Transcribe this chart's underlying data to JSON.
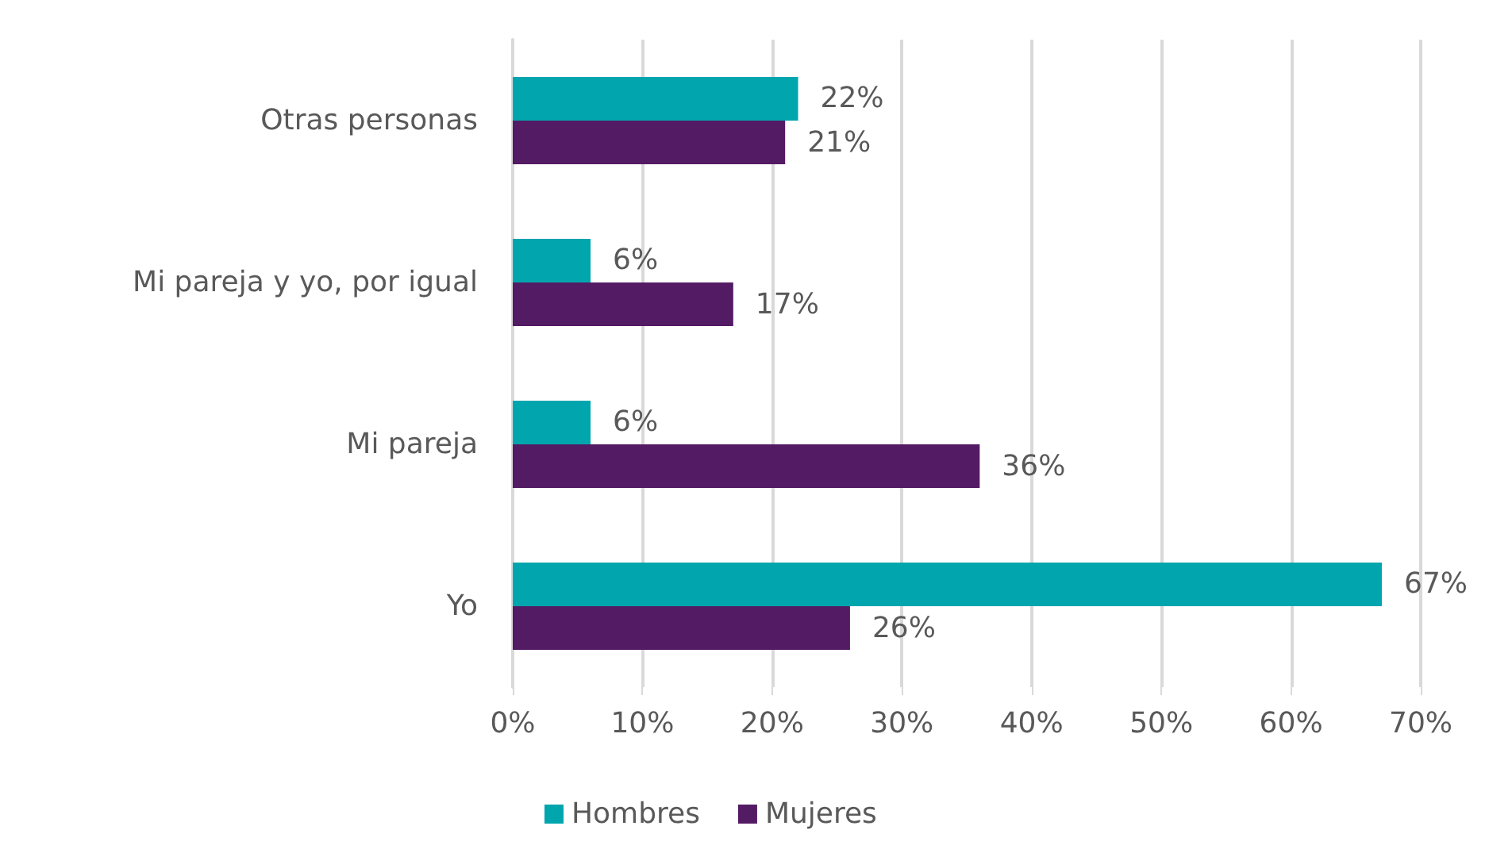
{
  "chart_data": {
    "type": "bar",
    "orientation": "horizontal",
    "categories": [
      "Otras personas",
      "Mi pareja y yo, por igual",
      "Mi pareja",
      "Yo"
    ],
    "series": [
      {
        "name": "Hombres",
        "color": "#00a5ad",
        "values": [
          22,
          6,
          6,
          67
        ],
        "value_labels": [
          "22%",
          "6%",
          "6%",
          "67%"
        ]
      },
      {
        "name": "Mujeres",
        "color": "#541b65",
        "values": [
          21,
          17,
          36,
          26
        ],
        "value_labels": [
          "21%",
          "17%",
          "36%",
          "26%"
        ]
      }
    ],
    "xlim": [
      0,
      70
    ],
    "xticks": [
      {
        "value": 0,
        "label": "0%"
      },
      {
        "value": 10,
        "label": "10%"
      },
      {
        "value": 20,
        "label": "20%"
      },
      {
        "value": 30,
        "label": "30%"
      },
      {
        "value": 40,
        "label": "40%"
      },
      {
        "value": 50,
        "label": "50%"
      },
      {
        "value": 60,
        "label": "60%"
      },
      {
        "value": 70,
        "label": "70%"
      }
    ],
    "grid": "x",
    "legend": "bottom"
  }
}
